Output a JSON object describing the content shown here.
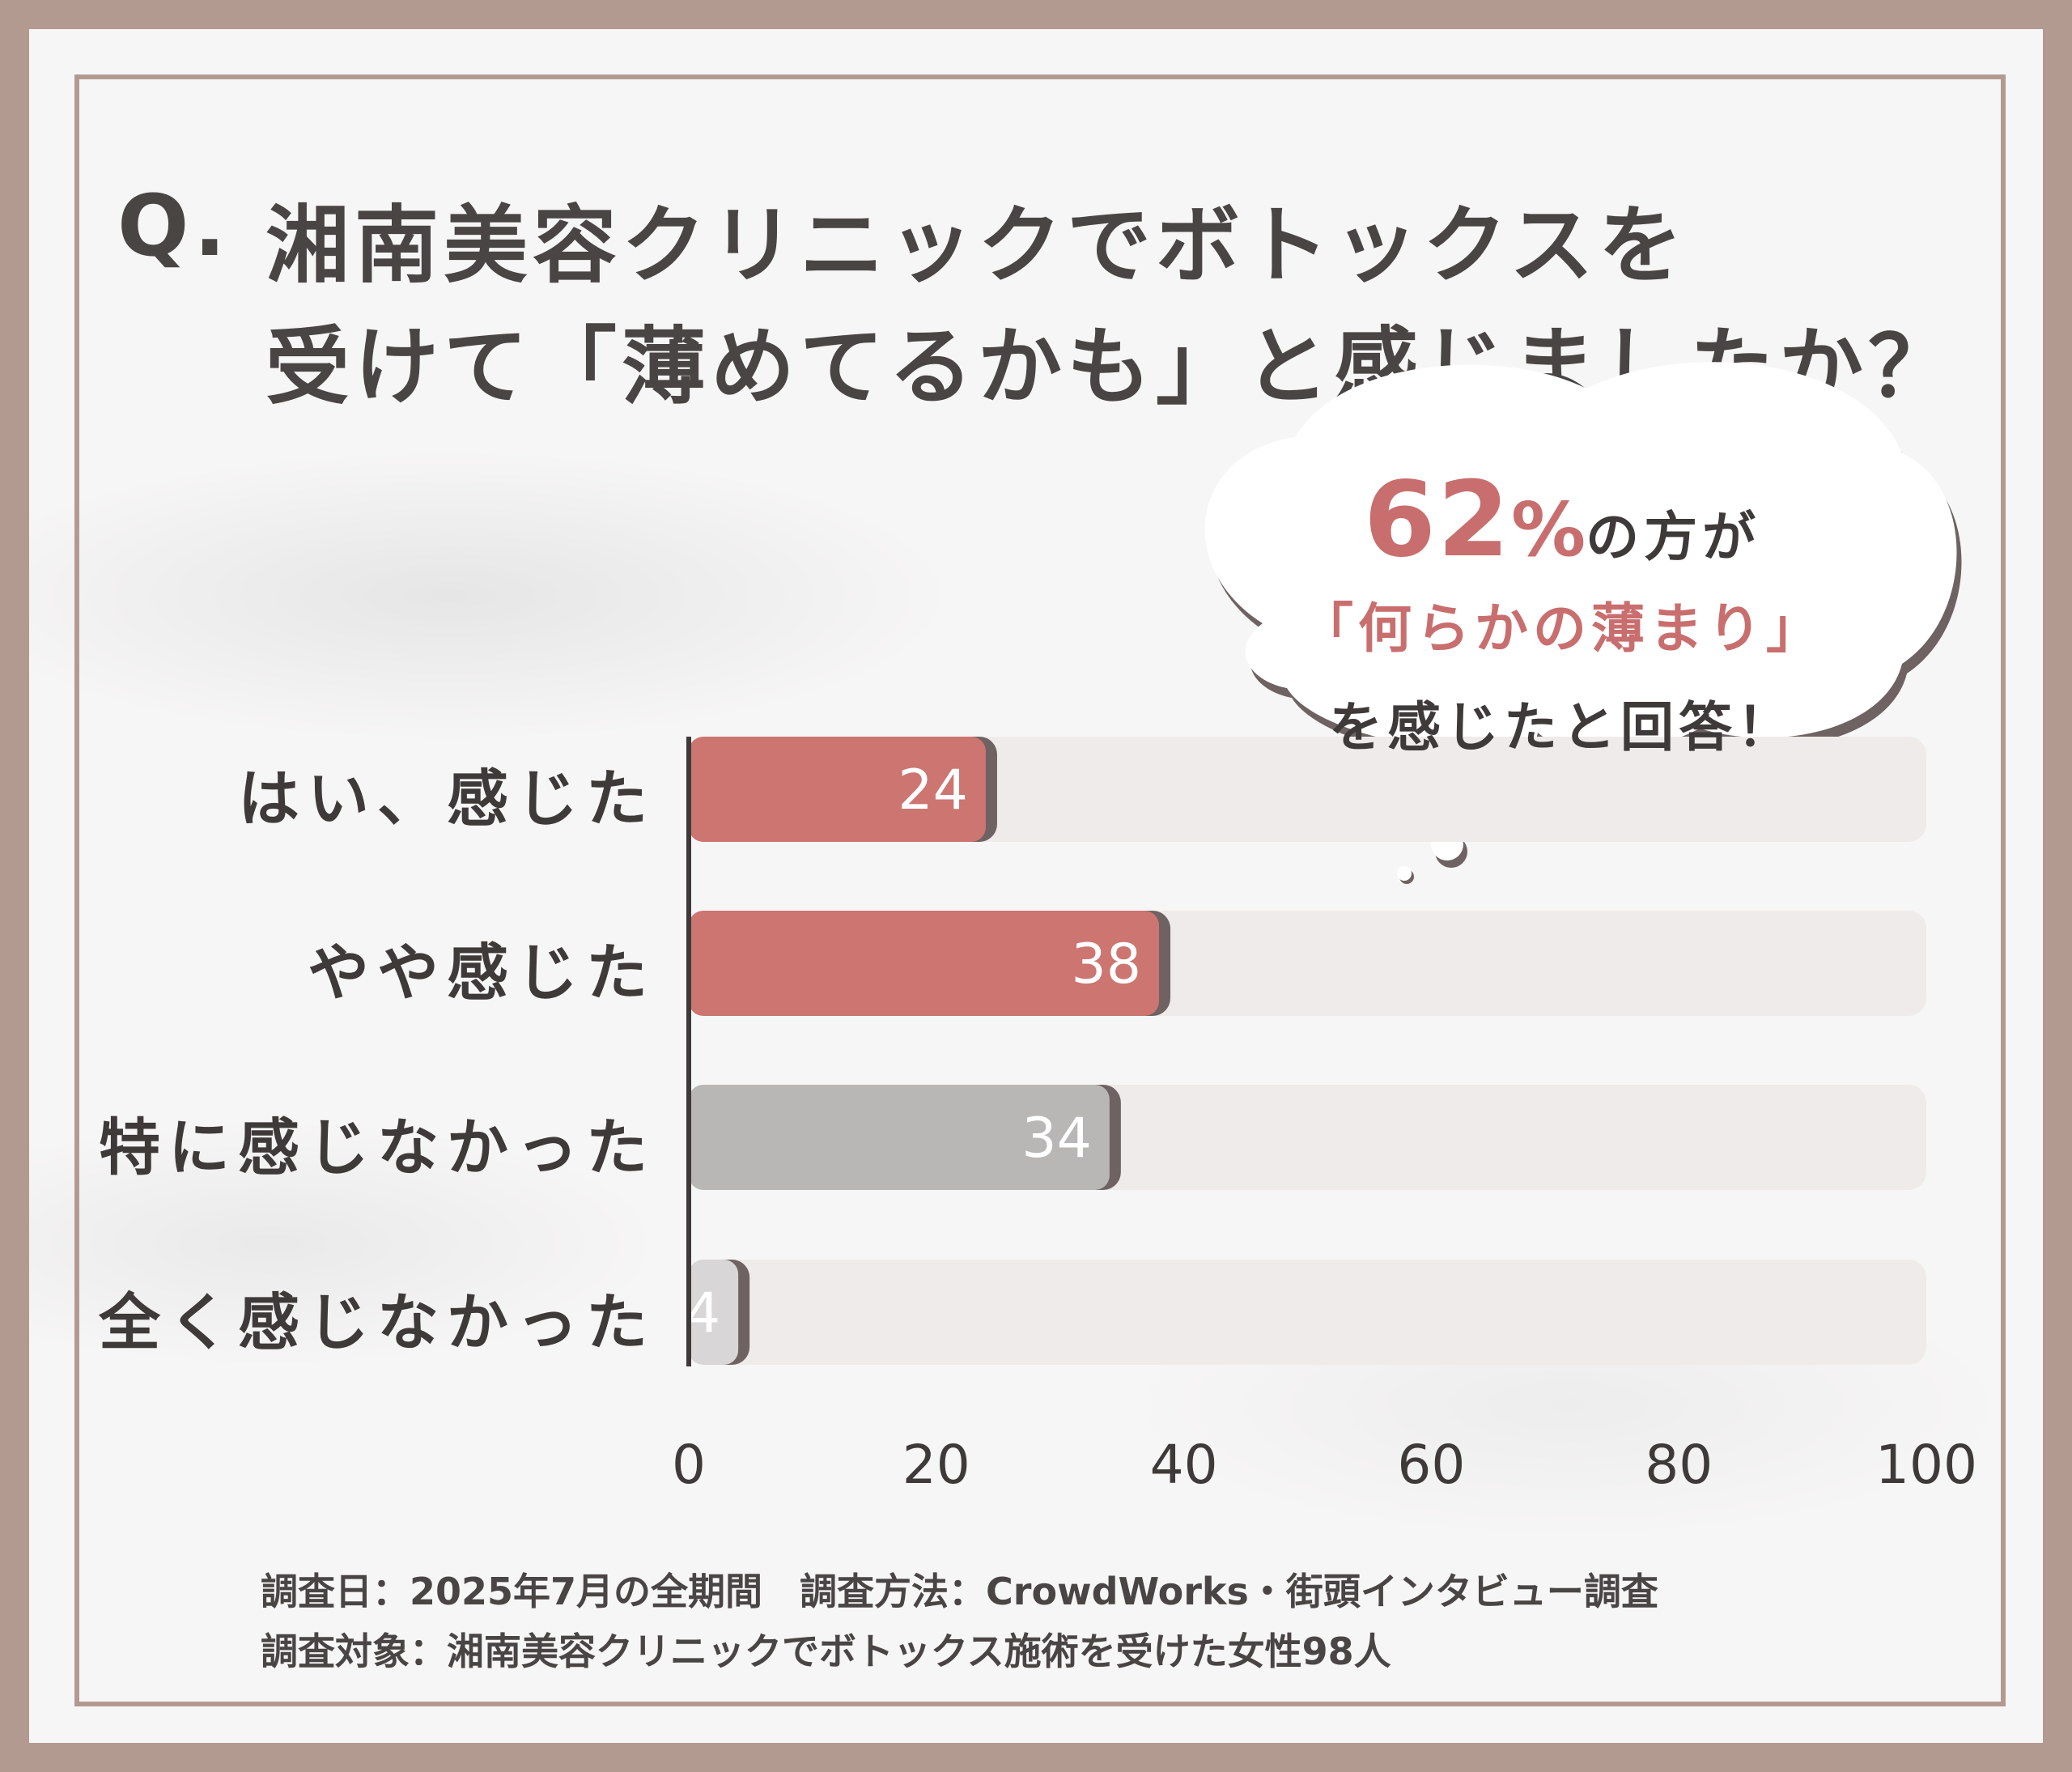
{
  "title": {
    "q": "Q.",
    "line1": "湘南美容クリニックでボトックスを",
    "line2": "受けて「薄めてるかも」と感じましたか？"
  },
  "callout": {
    "percent": "62",
    "percent_sign": "%",
    "line1_suffix": "の方が",
    "line2": "「何らかの薄まり」",
    "line3": "を感じたと回答！"
  },
  "footnote": {
    "line1": "調査日：2025年7月の全期間　調査方法：CrowdWorks・街頭インタビュー調査",
    "line2": "調査対象：湘南美容クリニックでボトックス施術を受けた女性98人"
  },
  "colors": {
    "highlight_bar": "#cd7571",
    "neutral_bar": "#b9b6b6",
    "low_bar": "#d8d6d6",
    "track": "#efebea",
    "frame": "#b39a91",
    "accent_text": "#c96e6e"
  },
  "chart_data": {
    "type": "bar",
    "orientation": "horizontal",
    "categories": [
      "はい、感じた",
      "やや感じた",
      "特に感じなかった",
      "全く感じなかった"
    ],
    "values": [
      24,
      38,
      34,
      4
    ],
    "xlim": [
      0,
      100
    ],
    "xticks": [
      "0",
      "20",
      "40",
      "60",
      "80",
      "100"
    ],
    "grid": false,
    "legend": "none"
  }
}
